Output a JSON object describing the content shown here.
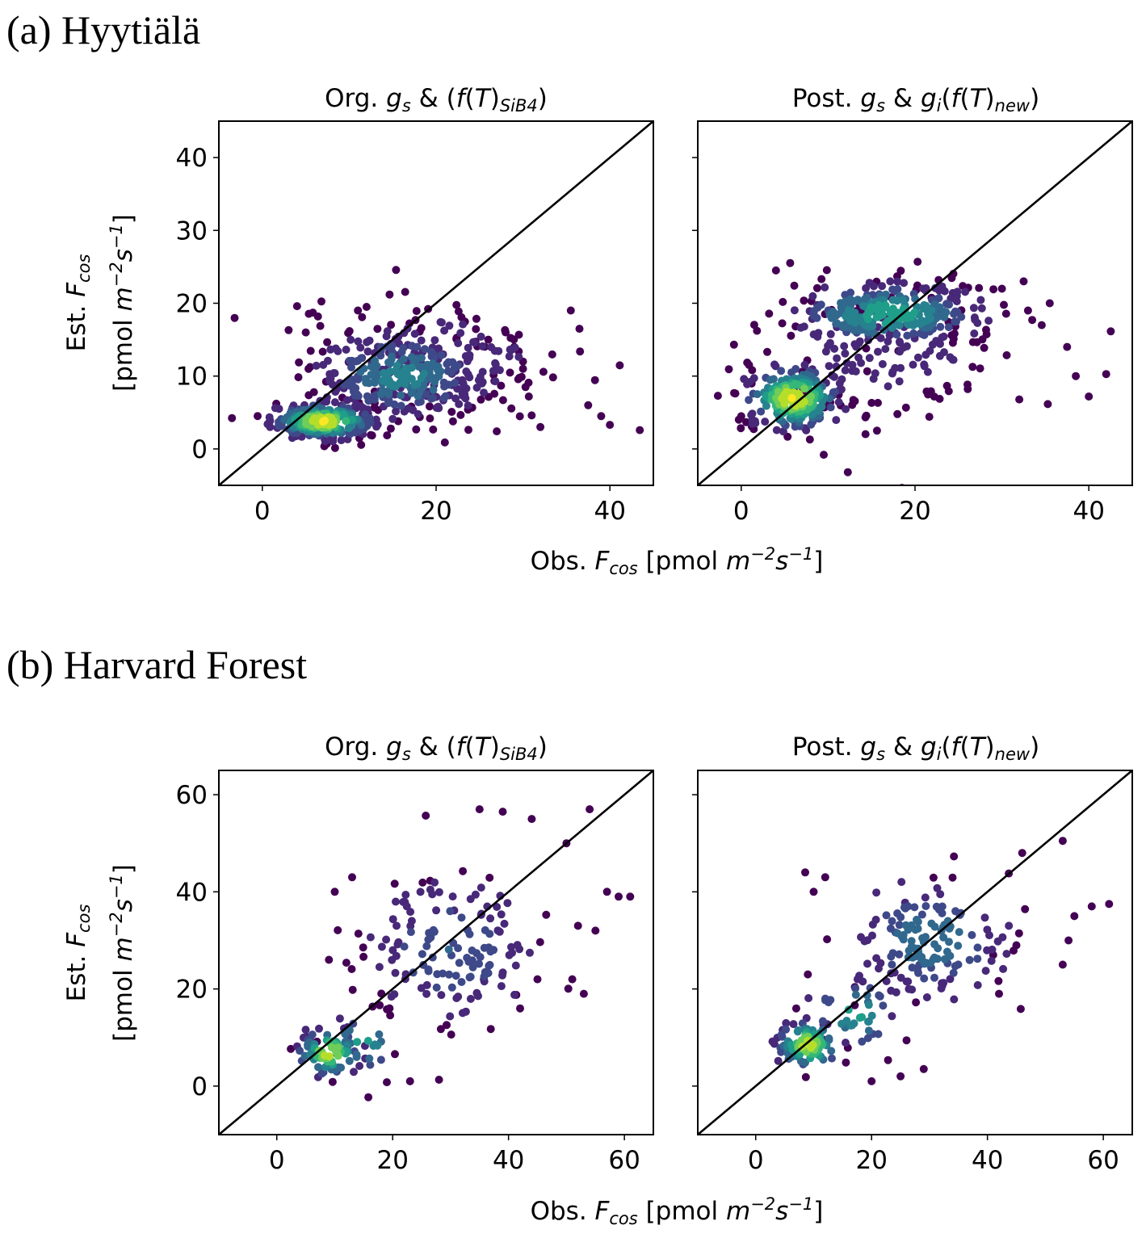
{
  "sections": [
    {
      "label": "(a) Hyytiälä"
    },
    {
      "label": "(b) Harvard Forest"
    }
  ],
  "colors": {
    "viridis": [
      "#440154",
      "#482878",
      "#3e4989",
      "#31688e",
      "#26828e",
      "#1f9e89",
      "#35b779",
      "#6ece58",
      "#b5de2b",
      "#fde725"
    ],
    "line": "#000000",
    "frame": "#000000"
  },
  "chart_data": [
    {
      "id": "hyytiala-org",
      "section": "(a) Hyytiälä",
      "type": "scatter",
      "title": {
        "prefix": "Org. ",
        "g": "g",
        "gsub": "s",
        "mid": " & (",
        "f": "f",
        "T": "T",
        "fsub": "SiB4",
        "end": ")"
      },
      "xlim": [
        -5,
        45
      ],
      "ylim": [
        -5,
        45
      ],
      "xticks": [
        0,
        20,
        40
      ],
      "yticks": [
        0,
        10,
        20,
        30,
        40
      ],
      "xlabel": "",
      "ylabel": "Est. F_cos [pmol m^-2 s^-1]",
      "grid": false,
      "legend": "none",
      "one_to_one_line": true,
      "color_encoding": "point density (viridis)",
      "clusters": [
        {
          "x": 7,
          "y": 3.8,
          "sx": 3.0,
          "sy": 1.2,
          "n": 260,
          "density": 0.95
        },
        {
          "x": 16,
          "y": 10,
          "sx": 5.0,
          "sy": 3.0,
          "n": 260,
          "density": 0.45
        },
        {
          "x": 20,
          "y": 12,
          "sx": 8.0,
          "sy": 4.5,
          "n": 160,
          "density": 0.12
        }
      ],
      "outliers": [
        [
          4,
          19.6
        ],
        [
          5,
          16
        ],
        [
          12,
          19.5
        ],
        [
          26,
          15
        ],
        [
          29,
          14
        ],
        [
          30,
          12
        ],
        [
          32,
          3
        ],
        [
          35.5,
          19
        ],
        [
          36.5,
          16.5
        ],
        [
          37.5,
          6
        ],
        [
          39,
          4.5
        ],
        [
          40,
          3.3
        ],
        [
          30,
          11
        ],
        [
          28,
          16
        ],
        [
          11,
          19
        ]
      ]
    },
    {
      "id": "hyytiala-post",
      "section": "(a) Hyytiälä",
      "type": "scatter",
      "title": {
        "prefix": "Post. ",
        "g": "g",
        "gsub": "s",
        "mid": " & ",
        "g2": "g",
        "g2sub": "i",
        "open": "(",
        "f": "f",
        "T": "T",
        "fsub": "new",
        "end": ")"
      },
      "xlim": [
        -5,
        45
      ],
      "ylim": [
        -5,
        45
      ],
      "xticks": [
        0,
        20,
        40
      ],
      "yticks": [
        0,
        10,
        20,
        30,
        40
      ],
      "xlabel": "",
      "ylabel": "",
      "grid": false,
      "legend": "none",
      "one_to_one_line": true,
      "color_encoding": "point density (viridis)",
      "clusters": [
        {
          "x": 6,
          "y": 7,
          "sx": 2.8,
          "sy": 2.2,
          "n": 230,
          "density": 0.95
        },
        {
          "x": 17,
          "y": 18.5,
          "sx": 5.5,
          "sy": 2.2,
          "n": 280,
          "density": 0.6
        },
        {
          "x": 16,
          "y": 13,
          "sx": 7.0,
          "sy": 5.0,
          "n": 160,
          "density": 0.12
        }
      ],
      "outliers": [
        [
          4,
          24.5
        ],
        [
          32.5,
          23
        ],
        [
          35.5,
          20
        ],
        [
          37.5,
          14
        ],
        [
          38.5,
          10
        ],
        [
          40,
          7.2
        ],
        [
          32,
          6.8
        ],
        [
          33,
          19
        ],
        [
          30,
          22
        ]
      ]
    },
    {
      "id": "harvard-org",
      "section": "(b) Harvard Forest",
      "type": "scatter",
      "title": {
        "prefix": "Org. ",
        "g": "g",
        "gsub": "s",
        "mid": " & (",
        "f": "f",
        "T": "T",
        "fsub": "SiB4",
        "end": ")"
      },
      "xlim": [
        -10,
        65
      ],
      "ylim": [
        -10,
        65
      ],
      "xticks": [
        0,
        20,
        40,
        60
      ],
      "yticks": [
        0,
        20,
        40,
        60
      ],
      "xlabel": "",
      "ylabel": "Est. F_cos [pmol m^-2 s^-1]",
      "grid": false,
      "legend": "none",
      "one_to_one_line": true,
      "color_encoding": "point density (viridis)",
      "clusters": [
        {
          "x": 9,
          "y": 7,
          "sx": 2.8,
          "sy": 2.5,
          "n": 85,
          "density": 0.9
        },
        {
          "x": 15,
          "y": 9,
          "sx": 3.0,
          "sy": 3.5,
          "n": 25,
          "density": 0.55
        },
        {
          "x": 30,
          "y": 28,
          "sx": 8.0,
          "sy": 8.0,
          "n": 150,
          "density": 0.28
        }
      ],
      "outliers": [
        [
          54,
          57
        ],
        [
          44,
          55
        ],
        [
          50,
          50
        ],
        [
          57,
          40
        ],
        [
          61,
          39
        ],
        [
          59,
          39
        ],
        [
          52,
          33
        ],
        [
          55,
          32
        ],
        [
          51,
          22
        ],
        [
          45,
          22
        ],
        [
          42,
          16
        ],
        [
          53,
          19
        ],
        [
          10,
          40
        ],
        [
          13,
          43
        ],
        [
          23,
          1
        ],
        [
          28,
          1.3
        ],
        [
          9,
          26
        ],
        [
          19,
          0.8
        ],
        [
          39,
          56.5
        ],
        [
          35,
          57
        ]
      ]
    },
    {
      "id": "harvard-post",
      "section": "(b) Harvard Forest",
      "type": "scatter",
      "title": {
        "prefix": "Post. ",
        "g": "g",
        "gsub": "s",
        "mid": " & ",
        "g2": "g",
        "g2sub": "i",
        "open": "(",
        "f": "f",
        "T": "T",
        "fsub": "new",
        "end": ")"
      },
      "xlim": [
        -10,
        65
      ],
      "ylim": [
        -10,
        65
      ],
      "xticks": [
        0,
        20,
        40,
        60
      ],
      "yticks": [
        0,
        20,
        40,
        60
      ],
      "xlabel": "",
      "ylabel": "",
      "grid": false,
      "legend": "none",
      "one_to_one_line": true,
      "color_encoding": "point density (viridis)",
      "clusters": [
        {
          "x": 9,
          "y": 8.5,
          "sx": 2.8,
          "sy": 2.6,
          "n": 90,
          "density": 0.9
        },
        {
          "x": 17,
          "y": 15,
          "sx": 4.0,
          "sy": 4.0,
          "n": 40,
          "density": 0.55
        },
        {
          "x": 30,
          "y": 30,
          "sx": 7.5,
          "sy": 6.5,
          "n": 150,
          "density": 0.38
        }
      ],
      "outliers": [
        [
          53,
          50.5
        ],
        [
          46,
          48
        ],
        [
          58,
          37
        ],
        [
          61,
          37.5
        ],
        [
          55,
          35
        ],
        [
          54,
          30
        ],
        [
          53,
          25
        ],
        [
          42,
          19
        ],
        [
          20,
          1
        ],
        [
          25,
          2
        ],
        [
          29,
          3.5
        ],
        [
          10,
          40
        ],
        [
          12,
          43
        ],
        [
          9,
          23
        ],
        [
          7,
          16
        ],
        [
          45,
          29
        ],
        [
          41,
          27
        ]
      ]
    }
  ],
  "shared_xlabel": {
    "prefix": "Obs. ",
    "F": "F",
    "Fsub": "cos",
    "unit_open": " [pmol ",
    "m": "m",
    "m_exp": "−2",
    "s": "s",
    "s_exp": "−1",
    "unit_close": "]"
  },
  "shared_ylabel": {
    "line1_prefix": "Est. ",
    "F": "F",
    "Fsub": "cos",
    "line2_open": "[pmol ",
    "m": "m",
    "m_exp": "−2",
    "s": "s",
    "s_exp": "−1",
    "line2_close": "]"
  }
}
